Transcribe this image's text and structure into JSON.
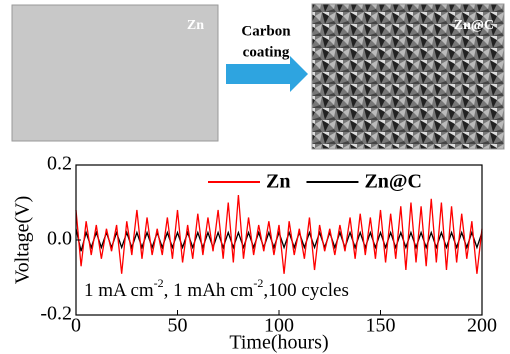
{
  "schematic": {
    "left_label": "Zn",
    "arrow_label": [
      "Carbon",
      "coating"
    ],
    "right_label": "Zn@C"
  },
  "chart_data": {
    "type": "line",
    "xlabel": "Time(hours)",
    "ylabel": "Voltage(V)",
    "annotation": [
      "1 mA cm",
      "-2",
      ", 1 mAh cm",
      "-2",
      ",100 cycles"
    ],
    "xlim": [
      0,
      200
    ],
    "xticks": [
      0,
      50,
      100,
      150,
      200
    ],
    "ylim": [
      -0.2,
      0.2
    ],
    "yticks": [
      {
        "value": -0.2,
        "label": "-0.2"
      },
      {
        "value": 0,
        "label": "0.0"
      },
      {
        "value": 0.2,
        "label": "0.2"
      }
    ],
    "legend": "top-right",
    "x": [
      0,
      2.5,
      5,
      7.5,
      10,
      12.5,
      15,
      17.5,
      20,
      22.5,
      25,
      27.5,
      30,
      32.5,
      35,
      37.5,
      40,
      42.5,
      45,
      47.5,
      50,
      52.5,
      55,
      57.5,
      60,
      62.5,
      65,
      67.5,
      70,
      72.5,
      75,
      77.5,
      80,
      82.5,
      85,
      87.5,
      90,
      92.5,
      95,
      97.5,
      100,
      102.5,
      105,
      107.5,
      110,
      112.5,
      115,
      117.5,
      120,
      122.5,
      125,
      127.5,
      130,
      132.5,
      135,
      137.5,
      140,
      142.5,
      145,
      147.5,
      150,
      152.5,
      155,
      157.5,
      160,
      162.5,
      165,
      167.5,
      170,
      172.5,
      175,
      177.5,
      180,
      182.5,
      185,
      187.5,
      190,
      192.5,
      195,
      197.5,
      200
    ],
    "series": [
      {
        "name": "Zn@C",
        "color": "#000000",
        "values": [
          0.03,
          -0.03,
          0.02,
          -0.02,
          0.02,
          -0.02,
          0.02,
          -0.02,
          0.02,
          -0.02,
          0.02,
          -0.02,
          0.02,
          -0.02,
          0.02,
          -0.02,
          0.02,
          -0.02,
          0.02,
          -0.02,
          0.02,
          -0.02,
          0.02,
          -0.02,
          0.02,
          -0.02,
          0.02,
          -0.02,
          0.02,
          -0.02,
          0.02,
          -0.02,
          0.02,
          -0.02,
          0.02,
          -0.02,
          0.02,
          -0.02,
          0.02,
          -0.02,
          0.02,
          -0.02,
          0.02,
          -0.02,
          0.02,
          -0.02,
          0.02,
          -0.02,
          0.02,
          -0.02,
          0.02,
          -0.02,
          0.02,
          -0.02,
          0.02,
          -0.02,
          0.02,
          -0.02,
          0.02,
          -0.02,
          0.02,
          -0.02,
          0.02,
          -0.02,
          0.02,
          -0.02,
          0.02,
          -0.02,
          0.02,
          -0.02,
          0.02,
          -0.02,
          0.02,
          -0.02,
          0.02,
          -0.02,
          0.02,
          -0.02,
          0.02,
          -0.02,
          0.02
        ]
      },
      {
        "name": "Zn",
        "color": "#ff0000",
        "values": [
          0.08,
          -0.07,
          0.05,
          -0.04,
          0.04,
          -0.05,
          0.03,
          -0.03,
          0.04,
          -0.09,
          0.05,
          -0.04,
          0.08,
          -0.05,
          0.06,
          -0.04,
          0.03,
          -0.04,
          0.06,
          -0.05,
          0.08,
          -0.06,
          0.04,
          -0.05,
          0.07,
          -0.04,
          0.06,
          -0.03,
          0.08,
          -0.05,
          0.1,
          -0.06,
          0.12,
          -0.05,
          0.06,
          -0.04,
          0.04,
          -0.03,
          0.05,
          -0.04,
          0.04,
          -0.09,
          0.05,
          -0.04,
          0.03,
          -0.05,
          0.06,
          -0.08,
          0.04,
          -0.03,
          0.03,
          -0.04,
          0.04,
          -0.03,
          0.06,
          -0.05,
          0.07,
          -0.04,
          0.06,
          -0.05,
          0.08,
          -0.06,
          0.07,
          -0.05,
          0.09,
          -0.08,
          0.1,
          -0.06,
          0.09,
          -0.07,
          0.11,
          -0.06,
          0.1,
          -0.08,
          0.09,
          -0.06,
          0.07,
          -0.05,
          0.05,
          -0.09,
          0.03
        ]
      }
    ]
  }
}
